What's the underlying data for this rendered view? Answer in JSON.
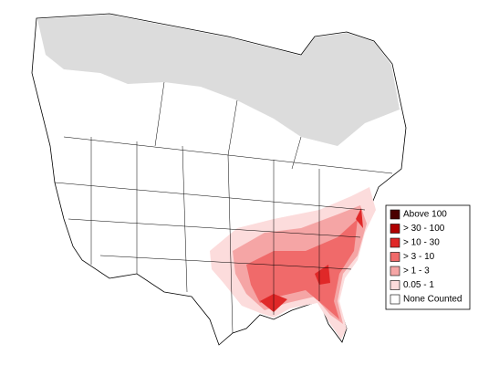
{
  "legend": {
    "items": [
      {
        "label": "Above 100",
        "color": "#4a0000"
      },
      {
        "label": "> 30 - 100",
        "color": "#b00000"
      },
      {
        "label": "> 10 - 30",
        "color": "#e02828"
      },
      {
        "label": "> 3 - 10",
        "color": "#f06a6a"
      },
      {
        "label": "> 1 - 3",
        "color": "#f5a5a5"
      },
      {
        "label": "0.05 - 1",
        "color": "#fcdcdc"
      },
      {
        "label": "None Counted",
        "color": "#ffffff"
      }
    ]
  }
}
